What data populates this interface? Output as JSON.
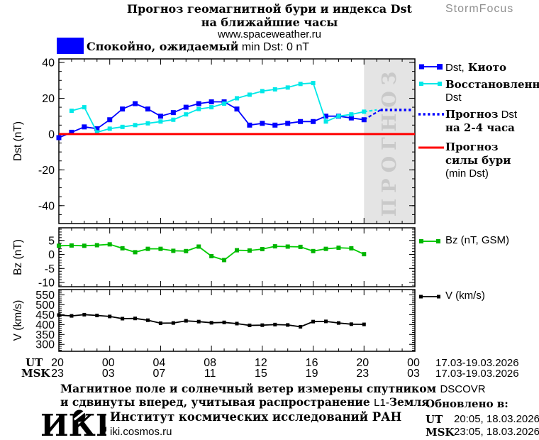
{
  "colors": {
    "blue": "#0000FF",
    "cyan": "#00E8E8",
    "red": "#FF0000",
    "green": "#00CC00",
    "green_marker": "#00B400",
    "black": "#000000",
    "band_fill": "#E4E4E4",
    "band_text": "#C9C9C9",
    "brand_gray": "#909090"
  },
  "header": {
    "title_line1": "Прогноз геомагнитной бури и индекса Dst",
    "title_line2": "на ближайшие часы",
    "site": "www.spaceweather.ru",
    "brand": "StormFocus"
  },
  "status_banner": {
    "label_ru": "Спокойно, ожидаемый",
    "label_en": " min Dst: 0 nT",
    "box_color": "#0000FF"
  },
  "forecast_band": {
    "label": "ПРОГНОЗ",
    "color": "#E4E4E4",
    "text_color": "#C9C9C9"
  },
  "legend": {
    "kyoto_en": "Dst,",
    "kyoto_ru": " Киото",
    "restored_ru": "Восстановленный",
    "restored_en": "Dst",
    "forecast_ru": "Прогноз",
    "forecast_en": " Dst",
    "forecast_line2": "на 2-4 часа",
    "storm_line1": "Прогноз",
    "storm_line2": "силы бури",
    "storm_line3": "(min Dst)",
    "bz": "Bz (nT, GSM)",
    "v": "V (km/s)"
  },
  "xaxis": {
    "ut_prefix": "UT",
    "msk_prefix": "MSK",
    "tick_hours": [
      0,
      4,
      8,
      12,
      16,
      20,
      24,
      28
    ],
    "ut_labels": [
      "20",
      "00",
      "04",
      "08",
      "12",
      "16",
      "20",
      "00"
    ],
    "msk_labels": [
      "23",
      "03",
      "07",
      "11",
      "15",
      "19",
      "23",
      "03"
    ],
    "date_range": "17.03-19.03.2026"
  },
  "chart_data": [
    {
      "id": "dst",
      "type": "line",
      "ylabel": "Dst (nT)",
      "ylim": [
        -50,
        42
      ],
      "yticks": [
        40,
        20,
        0,
        -20,
        -40
      ],
      "xlim_hours": [
        0,
        28
      ],
      "x_origin": "17.03.2026 20:00 UT",
      "forecast_band_hours": [
        24,
        28
      ],
      "series": [
        {
          "id": "dst-kyoto",
          "name": "Dst, Киото",
          "color": "#0000FF",
          "style": "solid",
          "marker": "square",
          "marker_size": 7,
          "x": [
            0,
            1,
            2,
            3,
            4,
            5,
            6,
            7,
            8,
            9,
            10,
            11,
            12,
            13,
            14,
            15,
            16,
            17,
            18,
            19,
            20,
            21,
            22,
            23,
            24
          ],
          "values": [
            -2,
            1,
            4,
            3,
            8,
            14,
            17,
            14,
            10,
            12,
            15,
            17,
            18,
            18,
            14,
            5,
            6,
            5,
            6,
            7,
            7,
            10,
            10,
            9,
            8
          ]
        },
        {
          "id": "dst-restored",
          "name": "Восстановленный Dst",
          "color": "#00E8E8",
          "style": "solid",
          "marker": "square",
          "marker_size": 6,
          "x": [
            1,
            2,
            3,
            4,
            5,
            6,
            7,
            8,
            9,
            10,
            11,
            12,
            13,
            14,
            15,
            16,
            17,
            18,
            19,
            20,
            21,
            22,
            23,
            24
          ],
          "values": [
            13,
            15,
            1,
            3,
            4,
            5,
            6,
            7,
            8,
            11,
            14,
            15,
            17,
            20,
            22,
            24,
            25,
            26,
            28,
            28.5,
            7,
            10,
            11,
            12.5
          ]
        },
        {
          "id": "kyoto-forecast-link",
          "name": "переход к прогнозу (Киото)",
          "color": "#0000FF",
          "style": "dashed",
          "x": [
            24,
            25.3
          ],
          "values": [
            8,
            13.5
          ]
        },
        {
          "id": "restored-forecast-link",
          "name": "переход к прогнозу (восстановленный)",
          "color": "#00E8E8",
          "style": "dashed",
          "x": [
            24,
            25
          ],
          "values": [
            12.5,
            13.5
          ]
        },
        {
          "id": "dst-forecast",
          "name": "Прогноз Dst на 2-4 часа",
          "color": "#0000FF",
          "style": "dotted",
          "x": [
            25.3,
            27.7
          ],
          "values": [
            13.5,
            13.5
          ]
        },
        {
          "id": "storm-level",
          "name": "Прогноз силы бури (min Dst)",
          "color": "#FF0000",
          "style": "thick",
          "x": [
            0,
            28
          ],
          "values": [
            0,
            0
          ]
        }
      ]
    },
    {
      "id": "bz",
      "type": "line",
      "ylabel": "Bz (nT)",
      "ylim": [
        -11.5,
        9.5
      ],
      "yticks": [
        5,
        0,
        -5,
        -10
      ],
      "xlim_hours": [
        0,
        28
      ],
      "series": [
        {
          "id": "bz-gsm",
          "name": "Bz (nT, GSM)",
          "color": "#00CC00",
          "marker_color": "#00B400",
          "style": "solid",
          "marker": "square",
          "marker_size": 6,
          "x": [
            0,
            1,
            2,
            3,
            4,
            5,
            6,
            7,
            8,
            9,
            10,
            11,
            12,
            13,
            14,
            15,
            16,
            17,
            18,
            19,
            20,
            21,
            22,
            23,
            24
          ],
          "values": [
            3.1,
            3.2,
            3.1,
            3.3,
            3.6,
            2.2,
            0.8,
            2,
            2,
            1.3,
            1.2,
            2.8,
            -0.6,
            -2,
            1.5,
            1.4,
            1.9,
            2.9,
            2.8,
            2.7,
            1.2,
            2,
            2.4,
            2.2,
            0.1
          ]
        }
      ]
    },
    {
      "id": "v",
      "type": "line",
      "ylabel": "V (km/s)",
      "ylim": [
        265,
        577
      ],
      "yticks": [
        550,
        500,
        450,
        400,
        350,
        300
      ],
      "xlim_hours": [
        0,
        28
      ],
      "series": [
        {
          "id": "v-wind",
          "name": "V (km/s)",
          "color": "#000000",
          "style": "solid",
          "marker": "square",
          "marker_size": 5,
          "x": [
            0,
            1,
            2,
            3,
            4,
            5,
            6,
            7,
            8,
            9,
            10,
            11,
            12,
            13,
            14,
            15,
            16,
            17,
            18,
            19,
            20,
            21,
            22,
            23,
            24
          ],
          "values": [
            448,
            444,
            450,
            446,
            441,
            430,
            431,
            422,
            407,
            408,
            419,
            415,
            409,
            411,
            405,
            396,
            397,
            400,
            398,
            389,
            415,
            416,
            408,
            402,
            401
          ]
        }
      ]
    }
  ],
  "footer": {
    "note_line1_ru": "Магнитное поле и солнечный ветер измерены спутником ",
    "note_line1_en": "DSCOVR",
    "note_line2_ru": "и сдвинуты вперед, учитывая распространение ",
    "note_line2_en": "L1-",
    "note_line2_ru2": "Земля",
    "updated_title": "Обновлено в:",
    "updated_rows": [
      {
        "prefix": "UT",
        "value": "20:05, 18.03.2026"
      },
      {
        "prefix": "MSK",
        "value": "23:05, 18.03.2026"
      }
    ],
    "logo_text": "ИКИ",
    "institute": "Институт космических исследований РАН",
    "institute_site": "iki.cosmos.ru"
  }
}
